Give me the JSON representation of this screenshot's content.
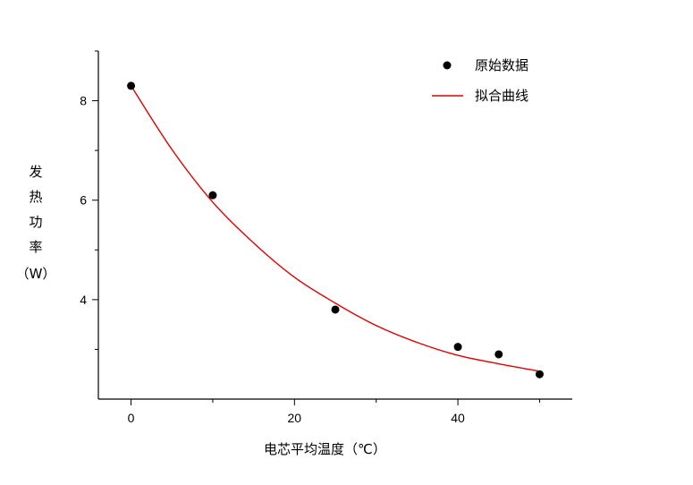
{
  "chart_data": {
    "type": "scatter",
    "title": "",
    "xlabel": "电芯平均温度（℃）",
    "ylabel": [
      "发",
      "热",
      "功",
      "率",
      "（W）"
    ],
    "xlim": [
      -4,
      54
    ],
    "ylim": [
      2.0,
      9.0
    ],
    "xticks": [
      0,
      20,
      40
    ],
    "yticks": [
      4,
      6,
      8
    ],
    "grid": false,
    "legend_position": "top-right",
    "series": [
      {
        "name": "原始数据",
        "kind": "scatter",
        "color": "#000000",
        "x": [
          0,
          10,
          25,
          40,
          45,
          50
        ],
        "y": [
          8.3,
          6.1,
          3.8,
          3.05,
          2.9,
          2.5
        ]
      },
      {
        "name": "拟合曲线",
        "kind": "line",
        "color": "#e00000",
        "x": [
          0,
          5,
          10,
          15,
          20,
          25,
          30,
          35,
          40,
          45,
          50
        ],
        "y": [
          8.3,
          7.02,
          5.96,
          5.14,
          4.45,
          3.93,
          3.48,
          3.14,
          2.88,
          2.71,
          2.56
        ]
      }
    ]
  }
}
